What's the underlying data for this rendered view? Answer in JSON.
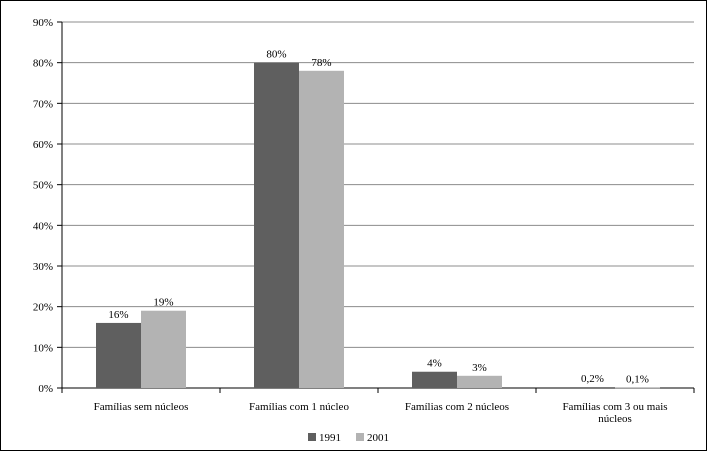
{
  "chart_data": {
    "type": "bar",
    "title": "",
    "xlabel": "",
    "ylabel": "",
    "categories": [
      [
        "Famílias sem núcleos"
      ],
      [
        "Famílias com 1 núcleo"
      ],
      [
        "Famílias com 2 núcleos"
      ],
      [
        "Famílias com 3 ou mais",
        "núcleos"
      ]
    ],
    "series": [
      {
        "name": "1991",
        "color": "#5f5f5f",
        "values": [
          16,
          80,
          4,
          0.2
        ],
        "labels": [
          "16%",
          "80%",
          "4%",
          "0,2%"
        ]
      },
      {
        "name": "2001",
        "color": "#b3b3b3",
        "values": [
          19,
          78,
          3,
          0.1
        ],
        "labels": [
          "19%",
          "78%",
          "3%",
          "0,1%"
        ]
      }
    ],
    "ylim": [
      0,
      90
    ],
    "yticks": [
      0,
      10,
      20,
      30,
      40,
      50,
      60,
      70,
      80,
      90
    ],
    "ytick_labels": [
      "0%",
      "10%",
      "20%",
      "30%",
      "40%",
      "50%",
      "60%",
      "70%",
      "80%",
      "90%"
    ],
    "grid": true,
    "legend_position": "bottom"
  }
}
